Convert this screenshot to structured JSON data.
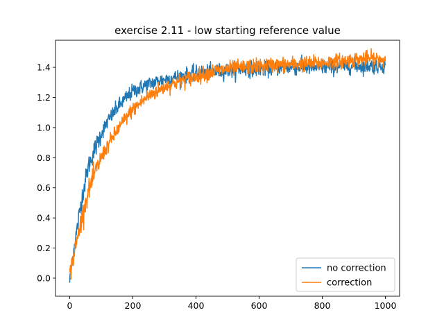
{
  "chart_data": {
    "type": "line",
    "title": "exercise 2.11 - low starting reference value",
    "xlabel": "",
    "ylabel": "",
    "xlim": [
      -45,
      1045
    ],
    "ylim": [
      -0.12,
      1.58
    ],
    "xticks": [
      0,
      200,
      400,
      600,
      800,
      1000
    ],
    "xtick_labels": [
      "0",
      "200",
      "400",
      "600",
      "800",
      "1000"
    ],
    "yticks": [
      0.0,
      0.2,
      0.4,
      0.6,
      0.8,
      1.0,
      1.2,
      1.4
    ],
    "ytick_labels": [
      "0.0",
      "0.2",
      "0.4",
      "0.6",
      "0.8",
      "1.0",
      "1.2",
      "1.4"
    ],
    "grid": false,
    "legend_position": "lower-right",
    "series": [
      {
        "name": "no correction",
        "color": "#1f77b4",
        "x": [
          0,
          10,
          20,
          30,
          40,
          50,
          60,
          80,
          100,
          120,
          150,
          180,
          200,
          250,
          300,
          350,
          400,
          450,
          500,
          550,
          600,
          700,
          800,
          900,
          1000
        ],
        "y": [
          -0.02,
          0.15,
          0.28,
          0.42,
          0.55,
          0.65,
          0.75,
          0.86,
          0.96,
          1.04,
          1.13,
          1.2,
          1.24,
          1.29,
          1.32,
          1.34,
          1.36,
          1.37,
          1.38,
          1.39,
          1.39,
          1.4,
          1.4,
          1.41,
          1.41
        ],
        "noise": 0.025
      },
      {
        "name": "correction",
        "color": "#ff7f0e",
        "x": [
          0,
          10,
          20,
          30,
          40,
          50,
          60,
          80,
          100,
          120,
          150,
          180,
          200,
          250,
          300,
          350,
          400,
          450,
          500,
          550,
          600,
          700,
          800,
          900,
          950,
          1000
        ],
        "y": [
          0.02,
          0.12,
          0.22,
          0.32,
          0.42,
          0.5,
          0.58,
          0.7,
          0.8,
          0.88,
          0.98,
          1.07,
          1.12,
          1.21,
          1.27,
          1.31,
          1.34,
          1.37,
          1.39,
          1.4,
          1.41,
          1.42,
          1.43,
          1.45,
          1.46,
          1.45
        ],
        "noise": 0.025
      }
    ]
  }
}
